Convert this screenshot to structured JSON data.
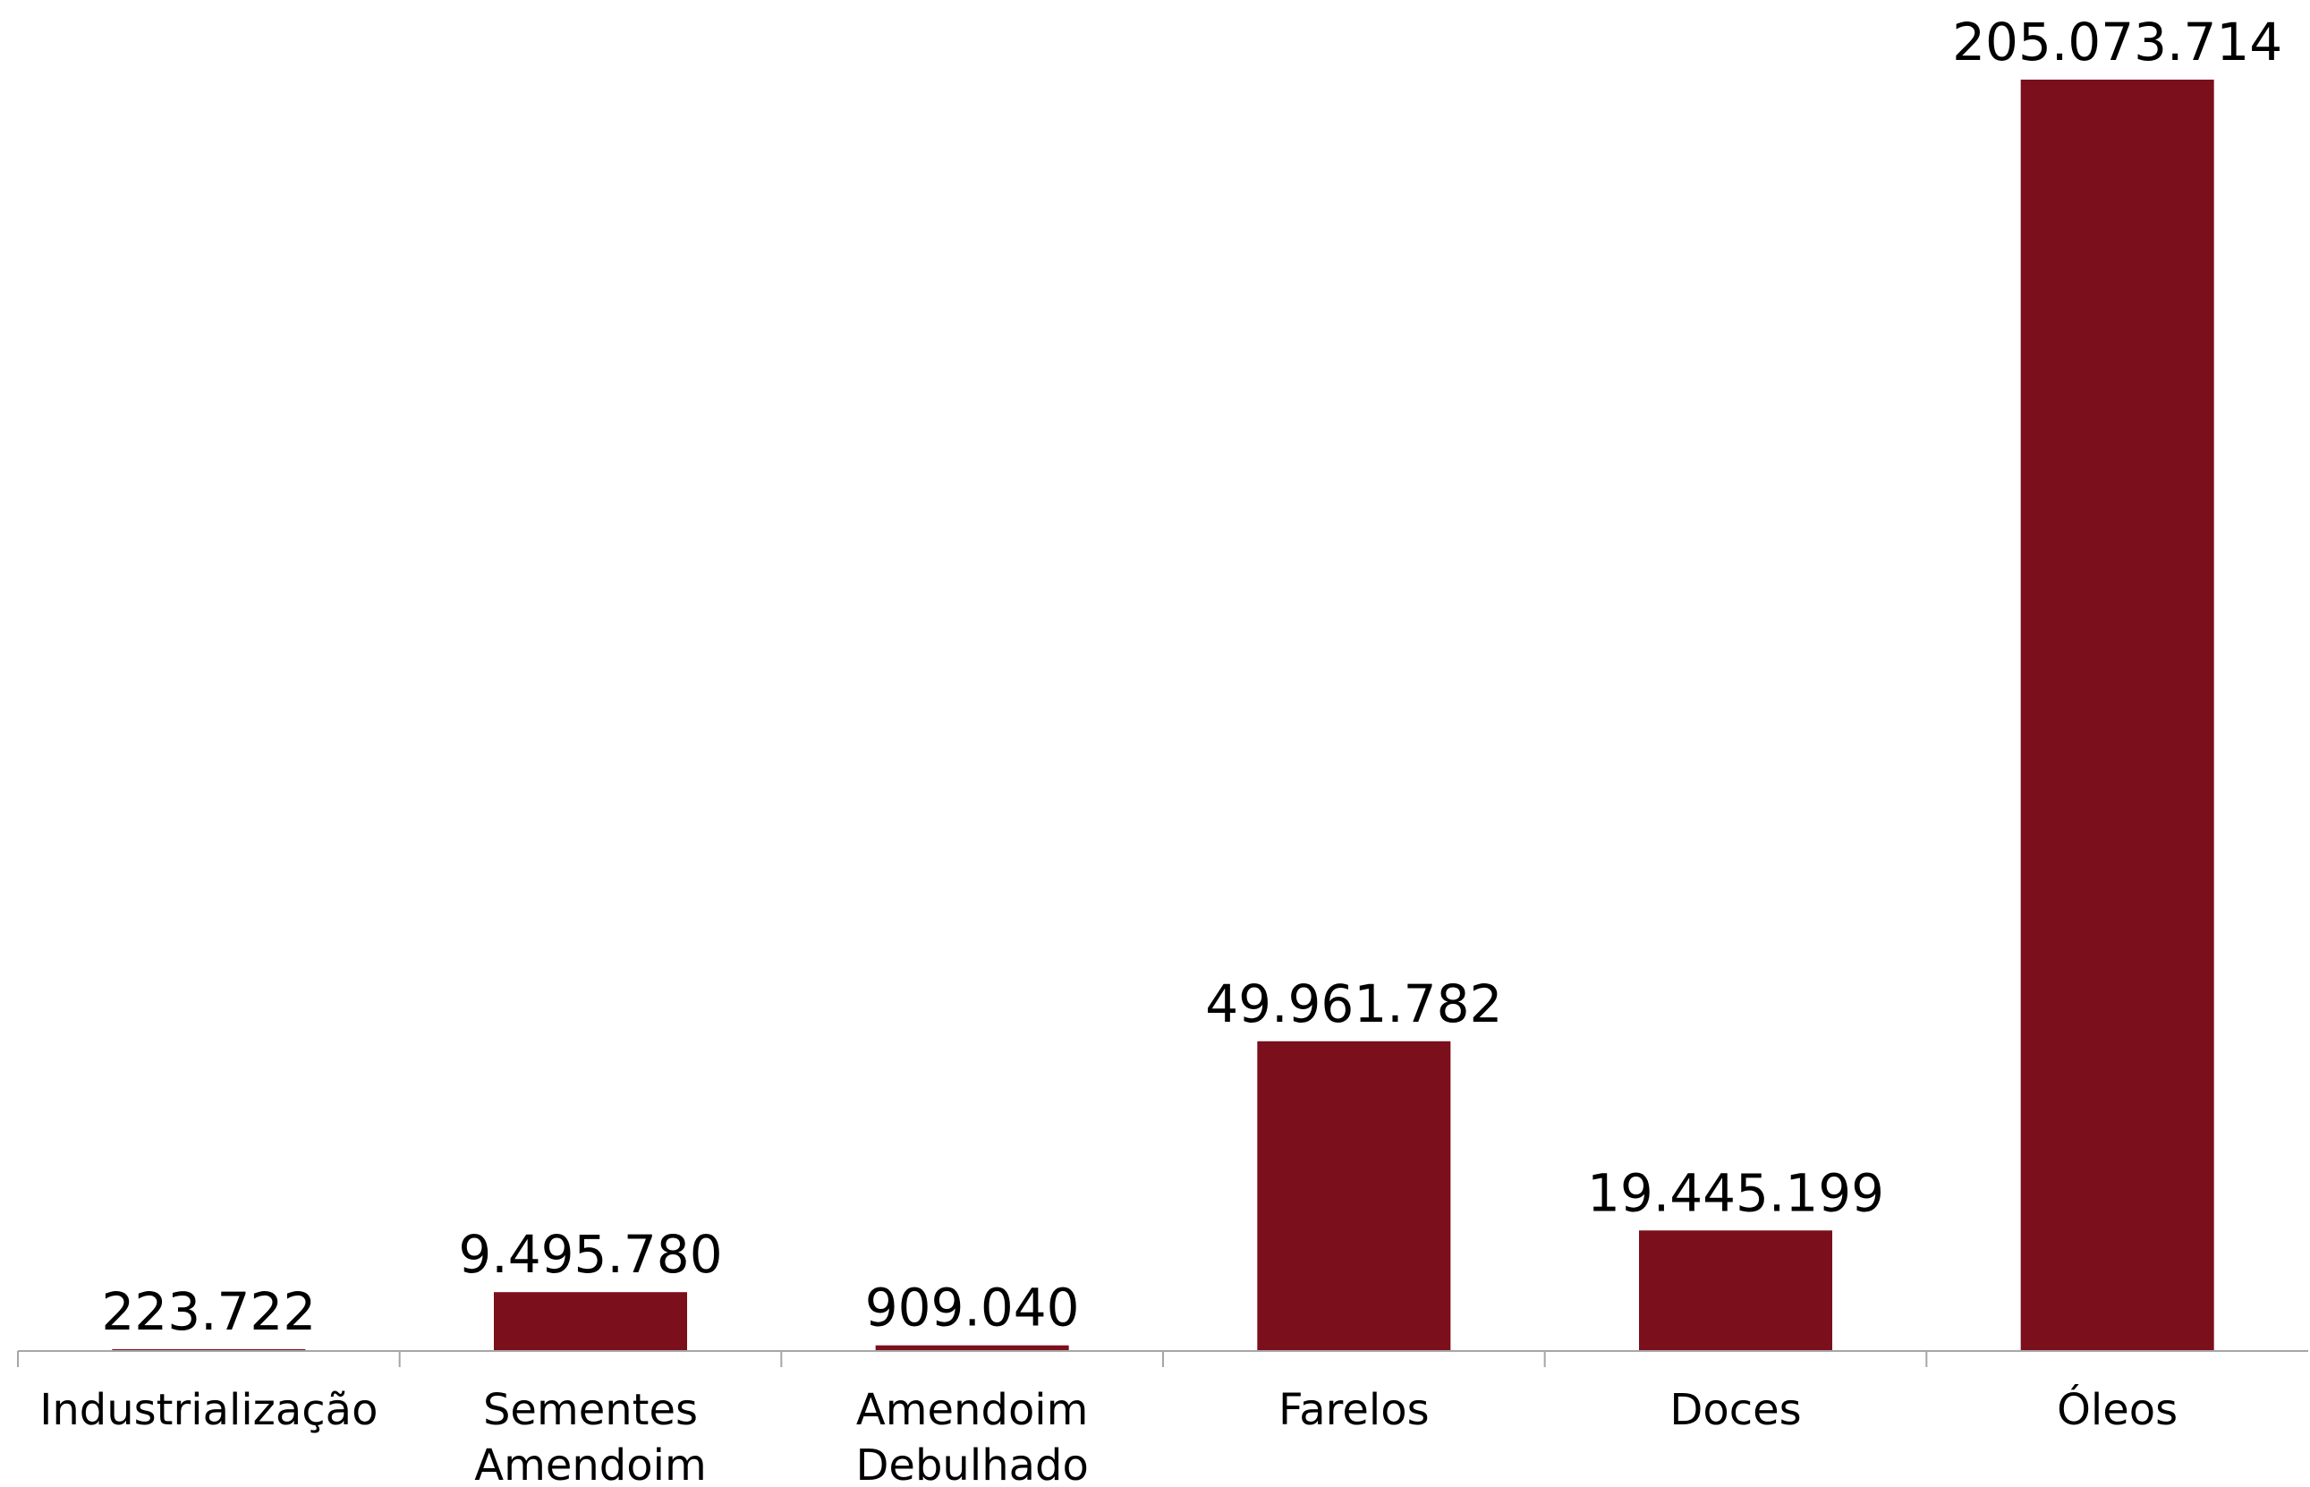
{
  "chart_data": {
    "type": "bar",
    "categories": [
      [
        "Industrialização"
      ],
      [
        "Sementes",
        "Amendoim"
      ],
      [
        "Amendoim",
        "Debulhado"
      ],
      [
        "Farelos"
      ],
      [
        "Doces"
      ],
      [
        "Óleos"
      ]
    ],
    "values": [
      223722,
      9495780,
      909040,
      49961782,
      19445199,
      205073714
    ],
    "value_labels": [
      "223.722",
      "9.495.780",
      "909.040",
      "49.961.782",
      "19.445.199",
      "205.073.714"
    ],
    "ylim": [
      0,
      205073714
    ],
    "grid": false,
    "legend": "none",
    "bar_color": "#7b0f1c",
    "axis_color": "#a6a6a6",
    "text_color": "#000000"
  }
}
